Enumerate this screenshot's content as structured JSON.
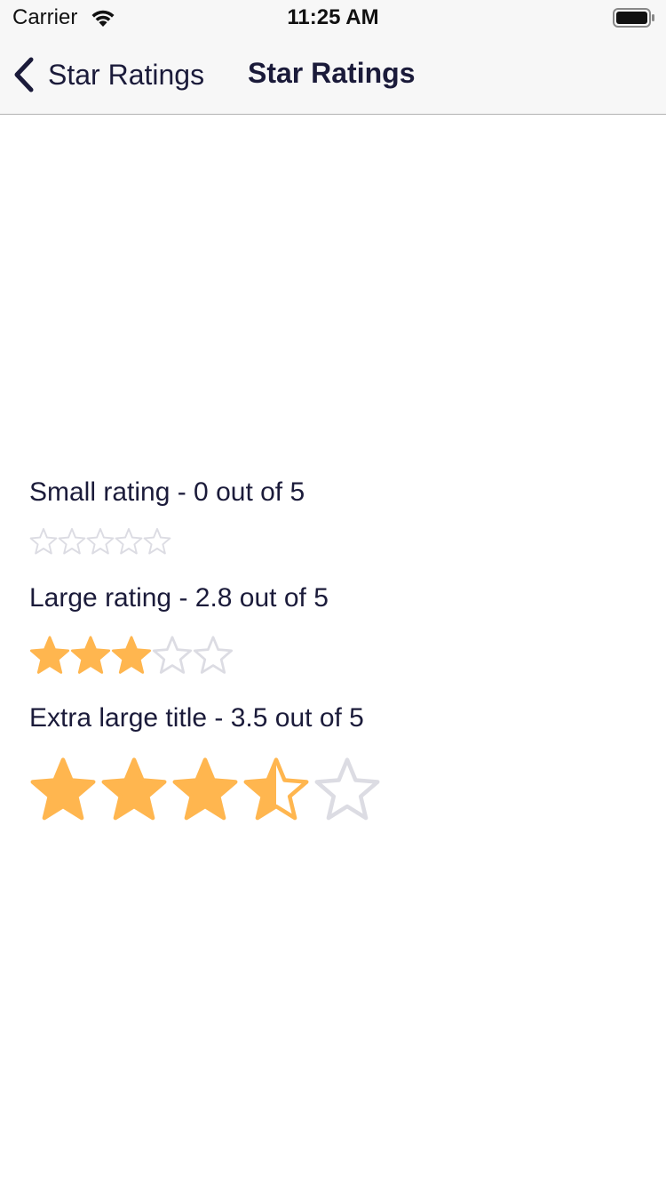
{
  "status_bar": {
    "carrier": "Carrier",
    "time": "11:25 AM",
    "wifi_icon": "wifi-icon",
    "battery_icon": "battery-full-icon"
  },
  "nav": {
    "back_label": "Star Ratings",
    "back_icon": "chevron-left-icon",
    "title": "Star Ratings"
  },
  "colors": {
    "star_filled": "#FFB64F",
    "star_empty": "#DCDCE3",
    "text": "#1B1B3A"
  },
  "ratings": [
    {
      "title": "Small rating - 0 out of 5",
      "value": 0,
      "max": 5
    },
    {
      "title": "Large rating - 2.8 out of 5",
      "value": 2.8,
      "max": 5
    },
    {
      "title": "Extra large title - 3.5 out of 5",
      "value": 3.5,
      "max": 5
    }
  ]
}
